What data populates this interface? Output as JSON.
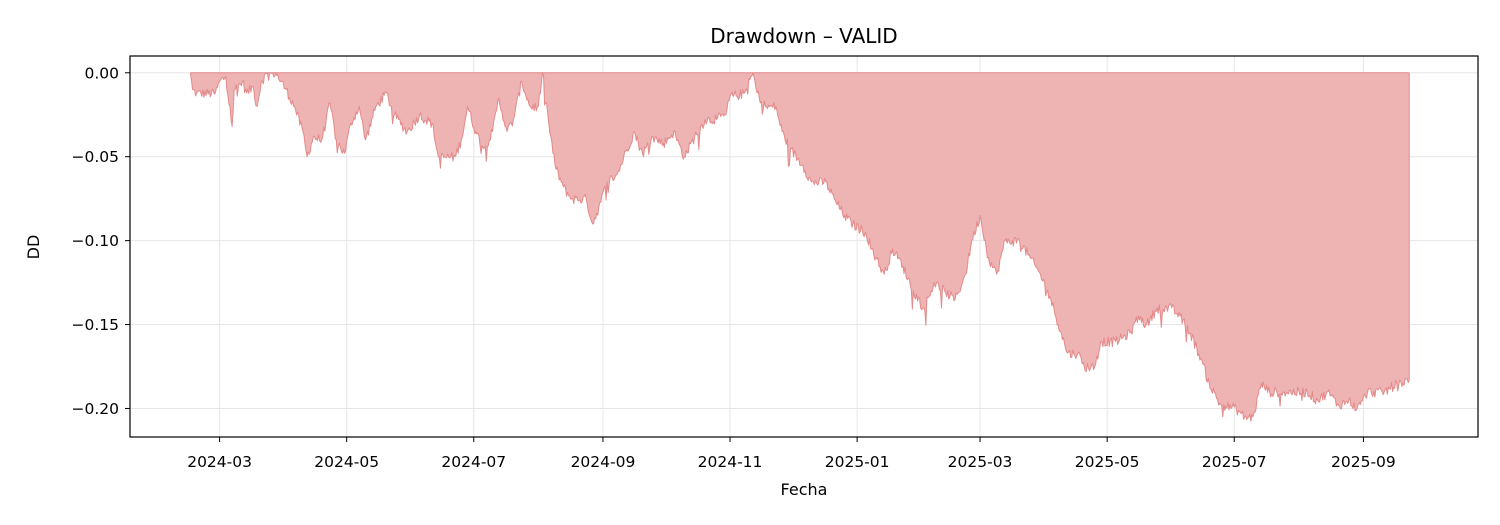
{
  "chart_data": {
    "type": "area",
    "title": "Drawdown – VALID",
    "xlabel": "Fecha",
    "ylabel": "DD",
    "xlim": [
      "2024-01-18",
      "2025-10-26"
    ],
    "ylim": [
      -0.217,
      0.01
    ],
    "x_ticks": [
      "2024-03",
      "2024-05",
      "2024-07",
      "2024-09",
      "2024-11",
      "2025-01",
      "2025-03",
      "2025-05",
      "2025-07",
      "2025-09"
    ],
    "x_tick_dates": [
      "2024-03-01",
      "2024-05-01",
      "2024-07-01",
      "2024-09-01",
      "2024-11-01",
      "2025-01-01",
      "2025-03-01",
      "2025-05-01",
      "2025-07-01",
      "2025-09-01"
    ],
    "y_ticks": [
      0.0,
      -0.05,
      -0.1,
      -0.15,
      -0.2
    ],
    "y_tick_labels": [
      "0.00",
      "−0.05",
      "−0.10",
      "−0.15",
      "−0.20"
    ],
    "grid": true,
    "fill_color": "#eeb3b3",
    "line_color": "#e38a8a",
    "series": [
      {
        "points": [
          [
            "2024-02-16",
            0.0
          ],
          [
            "2024-02-17",
            -0.01
          ],
          [
            "2024-02-19",
            -0.012
          ],
          [
            "2024-02-28",
            -0.012
          ],
          [
            "2024-03-01",
            -0.005
          ],
          [
            "2024-03-04",
            -0.002
          ],
          [
            "2024-03-06",
            -0.02
          ],
          [
            "2024-03-07",
            -0.032
          ],
          [
            "2024-03-08",
            -0.01
          ],
          [
            "2024-03-12",
            -0.005
          ],
          [
            "2024-03-14",
            -0.012
          ],
          [
            "2024-03-17",
            -0.008
          ],
          [
            "2024-03-19",
            -0.02
          ],
          [
            "2024-03-21",
            -0.005
          ],
          [
            "2024-03-24",
            0.0
          ],
          [
            "2024-03-28",
            0.0
          ],
          [
            "2024-04-02",
            -0.01
          ],
          [
            "2024-04-06",
            -0.02
          ],
          [
            "2024-04-10",
            -0.035
          ],
          [
            "2024-04-12",
            -0.05
          ],
          [
            "2024-04-15",
            -0.038
          ],
          [
            "2024-04-19",
            -0.04
          ],
          [
            "2024-04-23",
            -0.018
          ],
          [
            "2024-04-26",
            -0.04
          ],
          [
            "2024-04-30",
            -0.048
          ],
          [
            "2024-05-03",
            -0.03
          ],
          [
            "2024-05-07",
            -0.02
          ],
          [
            "2024-05-10",
            -0.04
          ],
          [
            "2024-05-15",
            -0.02
          ],
          [
            "2024-05-20",
            -0.012
          ],
          [
            "2024-05-24",
            -0.025
          ],
          [
            "2024-05-30",
            -0.035
          ],
          [
            "2024-06-05",
            -0.025
          ],
          [
            "2024-06-11",
            -0.03
          ],
          [
            "2024-06-14",
            -0.05
          ],
          [
            "2024-06-22",
            -0.05
          ],
          [
            "2024-06-25",
            -0.04
          ],
          [
            "2024-06-28",
            -0.02
          ],
          [
            "2024-07-02",
            -0.035
          ],
          [
            "2024-07-06",
            -0.045
          ],
          [
            "2024-07-10",
            -0.035
          ],
          [
            "2024-07-13",
            -0.015
          ],
          [
            "2024-07-17",
            -0.035
          ],
          [
            "2024-07-20",
            -0.028
          ],
          [
            "2024-07-24",
            -0.005
          ],
          [
            "2024-07-28",
            -0.02
          ],
          [
            "2024-08-01",
            -0.02
          ],
          [
            "2024-08-03",
            0.0
          ],
          [
            "2024-08-06",
            -0.03
          ],
          [
            "2024-08-09",
            -0.055
          ],
          [
            "2024-08-13",
            -0.068
          ],
          [
            "2024-08-17",
            -0.075
          ],
          [
            "2024-08-24",
            -0.075
          ],
          [
            "2024-08-27",
            -0.09
          ],
          [
            "2024-08-30",
            -0.08
          ],
          [
            "2024-09-03",
            -0.065
          ],
          [
            "2024-09-08",
            -0.06
          ],
          [
            "2024-09-11",
            -0.05
          ],
          [
            "2024-09-16",
            -0.035
          ],
          [
            "2024-09-20",
            -0.048
          ],
          [
            "2024-09-25",
            -0.038
          ],
          [
            "2024-09-30",
            -0.042
          ],
          [
            "2024-10-05",
            -0.035
          ],
          [
            "2024-10-10",
            -0.05
          ],
          [
            "2024-10-15",
            -0.038
          ],
          [
            "2024-10-20",
            -0.028
          ],
          [
            "2024-10-26",
            -0.027
          ],
          [
            "2024-10-30",
            -0.025
          ],
          [
            "2024-11-01",
            -0.014
          ],
          [
            "2024-11-08",
            -0.012
          ],
          [
            "2024-11-12",
            0.0
          ],
          [
            "2024-11-14",
            -0.012
          ],
          [
            "2024-11-18",
            -0.02
          ],
          [
            "2024-11-23",
            -0.02
          ],
          [
            "2024-11-26",
            -0.035
          ],
          [
            "2024-11-30",
            -0.045
          ],
          [
            "2024-12-06",
            -0.055
          ],
          [
            "2024-12-10",
            -0.065
          ],
          [
            "2024-12-17",
            -0.065
          ],
          [
            "2024-12-21",
            -0.075
          ],
          [
            "2024-12-26",
            -0.085
          ],
          [
            "2024-12-30",
            -0.09
          ],
          [
            "2025-01-05",
            -0.095
          ],
          [
            "2025-01-10",
            -0.11
          ],
          [
            "2025-01-14",
            -0.12
          ],
          [
            "2025-01-18",
            -0.105
          ],
          [
            "2025-01-23",
            -0.115
          ],
          [
            "2025-01-28",
            -0.13
          ],
          [
            "2025-02-02",
            -0.14
          ],
          [
            "2025-02-07",
            -0.125
          ],
          [
            "2025-02-12",
            -0.13
          ],
          [
            "2025-02-17",
            -0.135
          ],
          [
            "2025-02-22",
            -0.12
          ],
          [
            "2025-02-25",
            -0.1
          ],
          [
            "2025-03-01",
            -0.085
          ],
          [
            "2025-03-05",
            -0.11
          ],
          [
            "2025-03-09",
            -0.12
          ],
          [
            "2025-03-13",
            -0.1
          ],
          [
            "2025-03-20",
            -0.1
          ],
          [
            "2025-03-25",
            -0.11
          ],
          [
            "2025-03-30",
            -0.12
          ],
          [
            "2025-04-04",
            -0.135
          ],
          [
            "2025-04-09",
            -0.155
          ],
          [
            "2025-04-12",
            -0.167
          ],
          [
            "2025-04-17",
            -0.167
          ],
          [
            "2025-04-20",
            -0.175
          ],
          [
            "2025-04-25",
            -0.175
          ],
          [
            "2025-04-28",
            -0.16
          ],
          [
            "2025-05-05",
            -0.16
          ],
          [
            "2025-05-12",
            -0.155
          ],
          [
            "2025-05-16",
            -0.145
          ],
          [
            "2025-05-20",
            -0.15
          ],
          [
            "2025-05-25",
            -0.14
          ],
          [
            "2025-06-01",
            -0.14
          ],
          [
            "2025-06-05",
            -0.145
          ],
          [
            "2025-06-10",
            -0.155
          ],
          [
            "2025-06-15",
            -0.17
          ],
          [
            "2025-06-19",
            -0.185
          ],
          [
            "2025-06-24",
            -0.197
          ],
          [
            "2025-07-02",
            -0.2
          ],
          [
            "2025-07-06",
            -0.205
          ],
          [
            "2025-07-10",
            -0.205
          ],
          [
            "2025-07-14",
            -0.185
          ],
          [
            "2025-07-18",
            -0.19
          ],
          [
            "2025-08-05",
            -0.19
          ],
          [
            "2025-08-10",
            -0.195
          ],
          [
            "2025-08-15",
            -0.19
          ],
          [
            "2025-08-20",
            -0.198
          ],
          [
            "2025-08-25",
            -0.195
          ],
          [
            "2025-08-29",
            -0.2
          ],
          [
            "2025-09-03",
            -0.19
          ],
          [
            "2025-09-11",
            -0.19
          ],
          [
            "2025-09-17",
            -0.185
          ],
          [
            "2025-09-23",
            -0.183
          ]
        ]
      }
    ]
  }
}
